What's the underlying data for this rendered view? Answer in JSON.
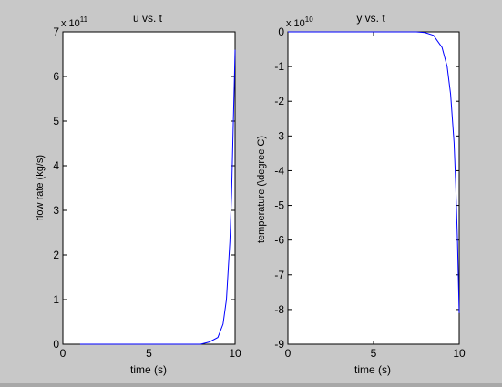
{
  "chart_data": [
    {
      "type": "line",
      "title": "u vs. t",
      "xlabel": "time (s)",
      "ylabel": "flow rate (kg/s)",
      "exponent_base": "x 10",
      "exponent_power": "11",
      "xlim": [
        0,
        10
      ],
      "ylim": [
        0,
        7
      ],
      "x_ticks": [
        "0",
        "5",
        "10"
      ],
      "y_ticks": [
        "0",
        "1",
        "2",
        "3",
        "4",
        "5",
        "6",
        "7"
      ],
      "grid": false,
      "line_color": "#0000ff",
      "series": [
        {
          "x": [
            1,
            8,
            8.5,
            9,
            9.3,
            9.5,
            9.7,
            9.8,
            9.9,
            9.95,
            10
          ],
          "y": [
            0,
            0,
            0.05,
            0.15,
            0.45,
            1.0,
            2.3,
            3.4,
            5.0,
            5.8,
            6.6
          ]
        }
      ]
    },
    {
      "type": "line",
      "title": "y vs. t",
      "xlabel": "time (s)",
      "ylabel": "temperature (\\degree C)",
      "exponent_base": "x 10",
      "exponent_power": "10",
      "xlim": [
        0,
        10
      ],
      "ylim": [
        -9,
        0
      ],
      "x_ticks": [
        "0",
        "5",
        "10"
      ],
      "y_ticks": [
        "0",
        "-1",
        "-2",
        "-3",
        "-4",
        "-5",
        "-6",
        "-7",
        "-8",
        "-9"
      ],
      "grid": false,
      "line_color": "#0000ff",
      "series": [
        {
          "x": [
            0,
            7.5,
            8,
            8.5,
            9,
            9.3,
            9.5,
            9.7,
            9.8,
            9.9,
            10
          ],
          "y": [
            0,
            0,
            -0.02,
            -0.1,
            -0.45,
            -1.0,
            -1.8,
            -3.2,
            -4.4,
            -6.0,
            -8.1
          ]
        }
      ]
    }
  ]
}
